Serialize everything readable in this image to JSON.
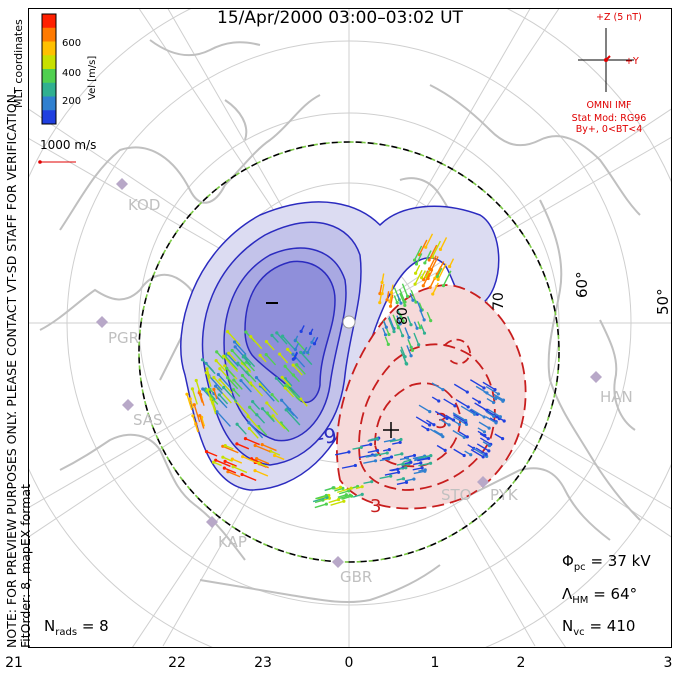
{
  "title": "15/Apr/2000 03:00–03:02 UT",
  "note_lines": [
    "NOTE: FOR PREVIEW PURPOSES ONLY. PLEASE CONTACT VT-SD STAFF FOR VERIFICATION.",
    "FitOrder: 8, mapEX format"
  ],
  "coords_label": "MLT coordinates",
  "colorbar": {
    "label": "Vel [m/s]",
    "ticks": [
      "600",
      "400",
      "200"
    ],
    "colors": [
      "#ff2000",
      "#ff7a00",
      "#ffc000",
      "#c8e000",
      "#50d050",
      "#30b090",
      "#3080d0",
      "#2040e0"
    ]
  },
  "vector_scale": {
    "label": "1000 m/s",
    "color": "#e00000"
  },
  "imf": {
    "z_label": "+Z (5 nT)",
    "y_label": "+Y",
    "source": "OMNI IMF",
    "model": "Stat Mod: RG96",
    "condition": "By+, 0<BT<4"
  },
  "stations": [
    "KOD",
    "PGR",
    "SAS",
    "KAP",
    "GBR",
    "STO",
    "PYK",
    "HAN"
  ],
  "lat_labels": [
    "60°",
    "50°"
  ],
  "contour_labels": [
    "-9",
    "3",
    "-",
    "+"
  ],
  "stats": {
    "phi_pc": "Φ",
    "phi_pc_sub": "pc",
    "phi_pc_value": "= 37 kV",
    "lambda_hm": "Λ",
    "lambda_hm_sub": "HM",
    "lambda_hm_value": "= 64°",
    "n_vc": "N",
    "n_vc_sub": "vc",
    "n_vc_value": "= 410",
    "n_rads": "N",
    "n_rads_sub": "rads",
    "n_rads_value": "= 8"
  },
  "mlt_labels": [
    "21",
    "22",
    "23",
    "0",
    "1",
    "2",
    "3"
  ],
  "colors": {
    "negative_cell": "#2b2bbf",
    "positive_cell": "#c81e1e",
    "coastline": "#c0c0c0",
    "grid": "#c8c8c8",
    "hm_boundary_green": "#7ac943"
  }
}
